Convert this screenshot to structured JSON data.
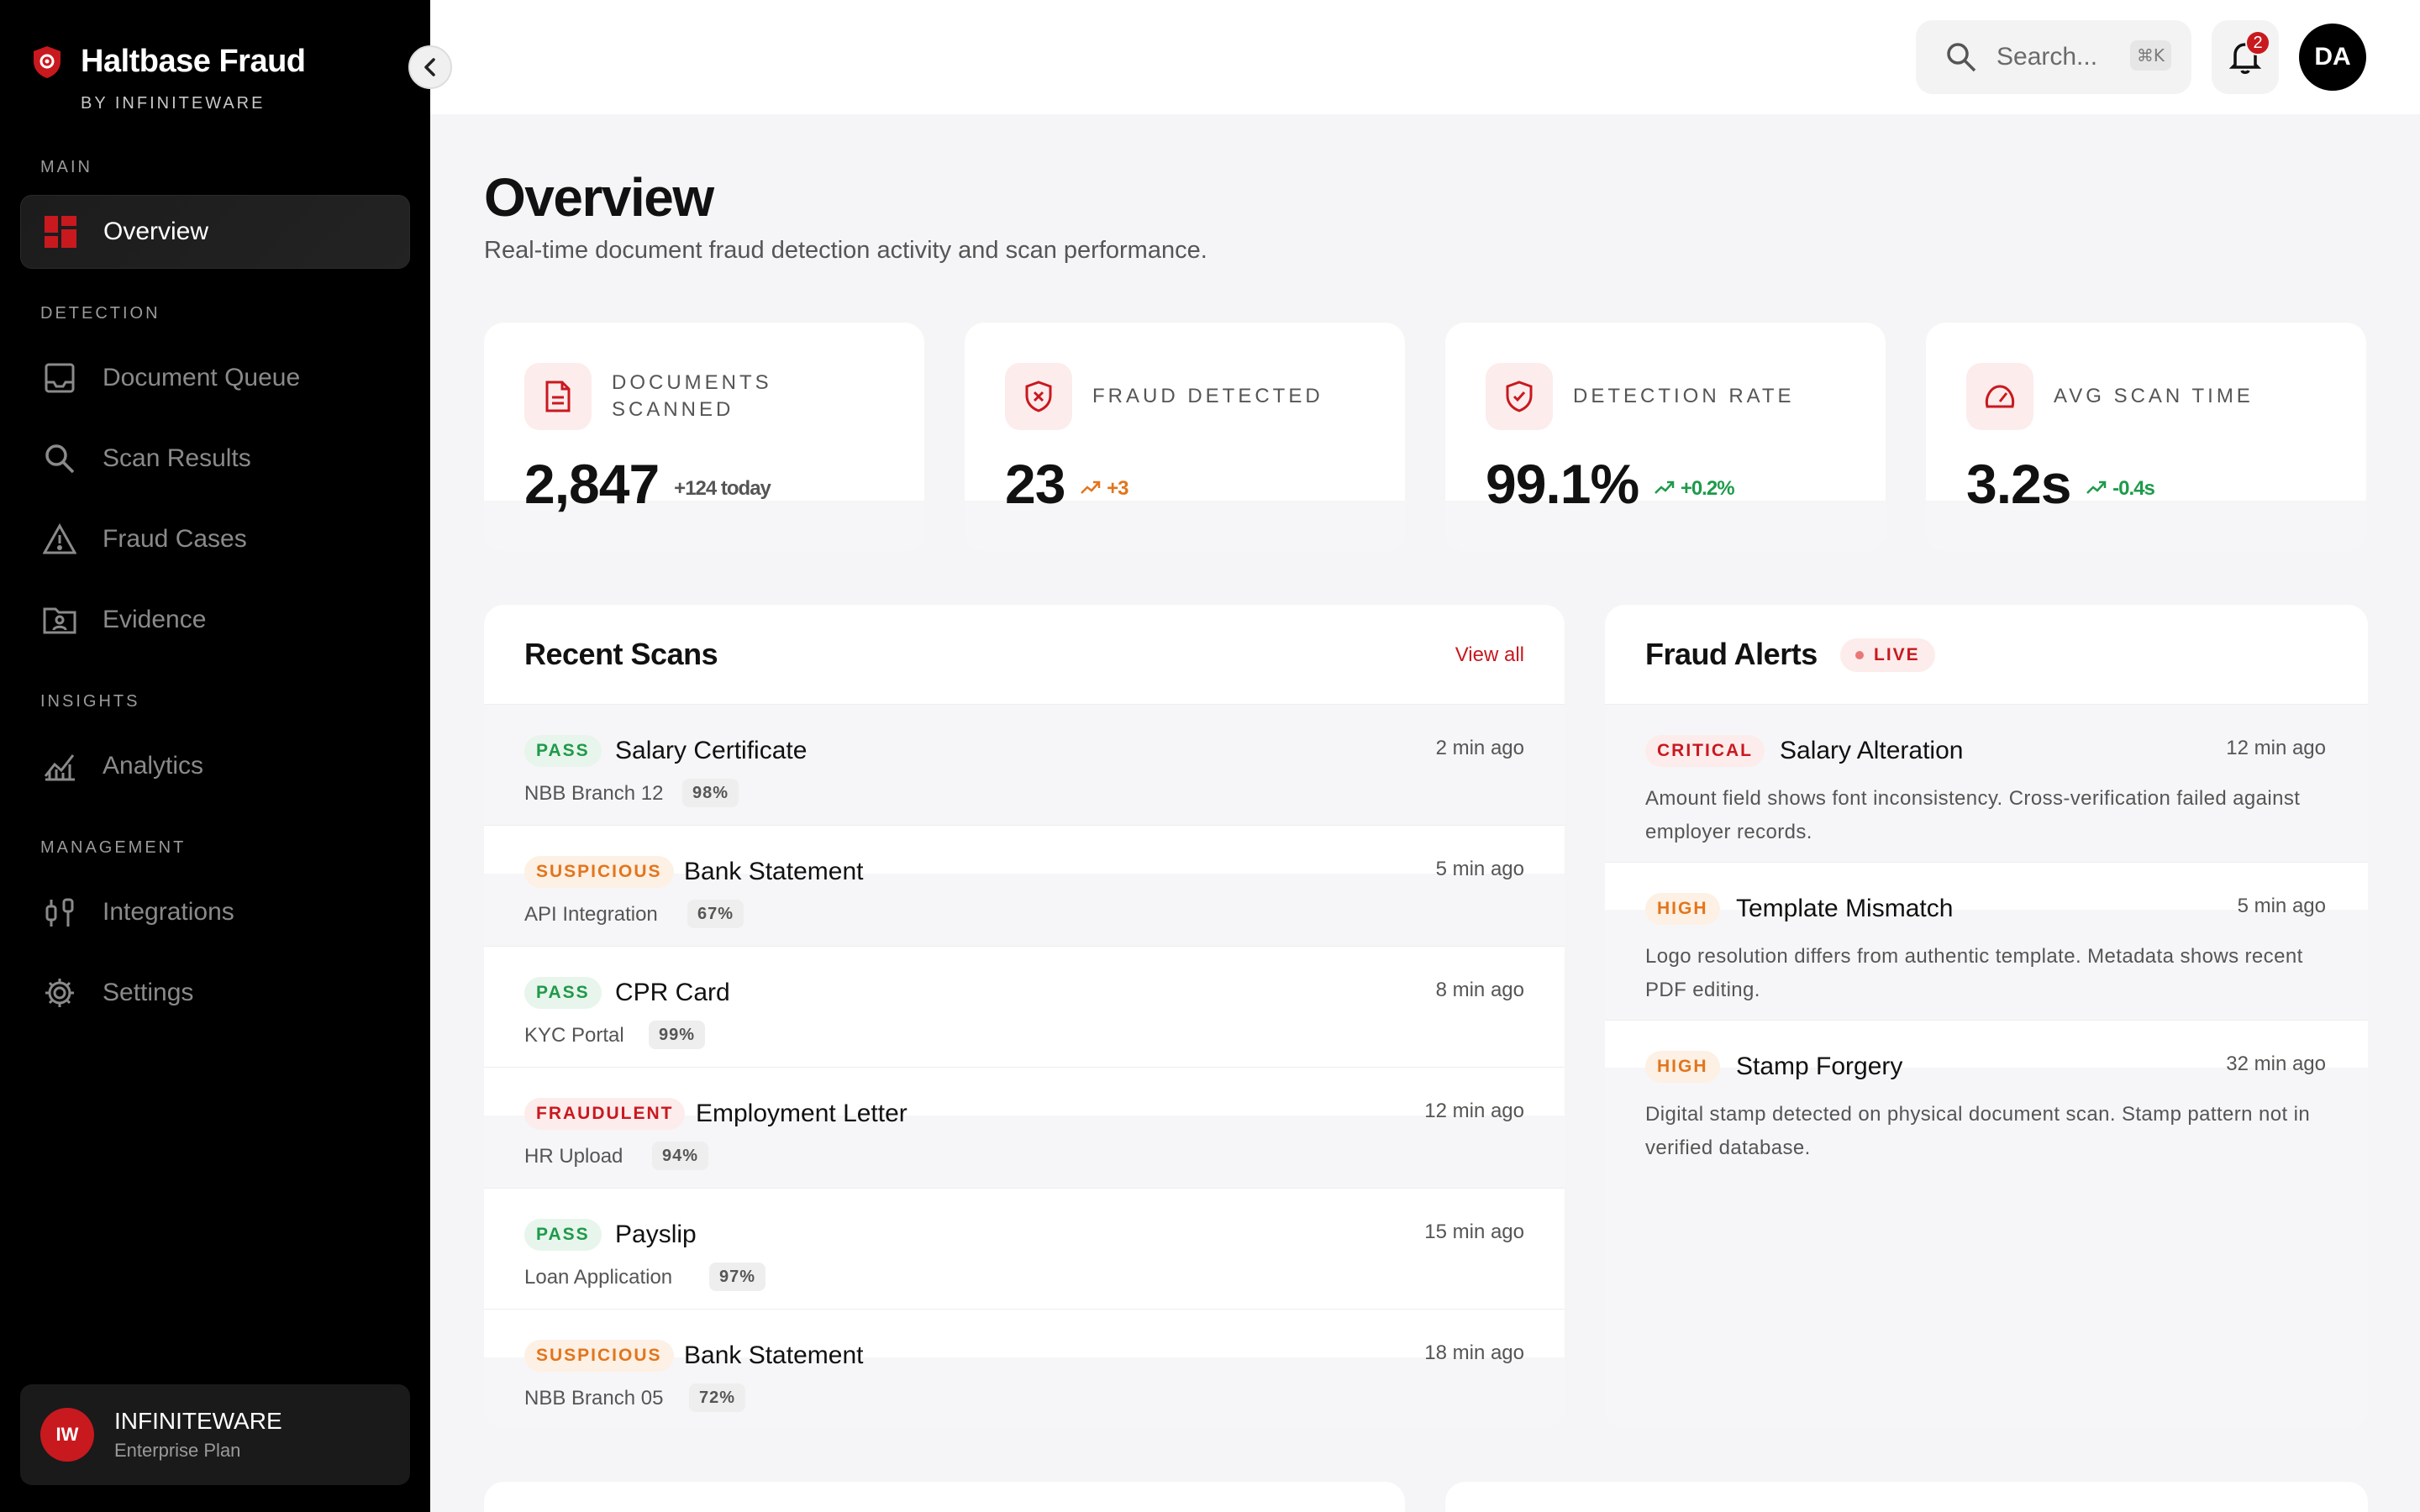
{
  "brand": {
    "name": "Haltbase Fraud",
    "sub": "BY INFINITEWARE",
    "accent": "#c8191f"
  },
  "sidebar": {
    "sections": [
      {
        "label": "MAIN",
        "items": [
          {
            "label": "Overview",
            "icon": "grid-icon",
            "active": true
          }
        ]
      },
      {
        "label": "DETECTION",
        "items": [
          {
            "label": "Document Queue",
            "icon": "inbox-icon"
          },
          {
            "label": "Scan Results",
            "icon": "search-icon"
          },
          {
            "label": "Fraud Cases",
            "icon": "warning-icon"
          },
          {
            "label": "Evidence",
            "icon": "folder-user-icon"
          }
        ]
      },
      {
        "label": "INSIGHTS",
        "items": [
          {
            "label": "Analytics",
            "icon": "analytics-icon"
          }
        ]
      },
      {
        "label": "MANAGEMENT",
        "items": [
          {
            "label": "Integrations",
            "icon": "plug-icon"
          },
          {
            "label": "Settings",
            "icon": "gear-icon"
          }
        ]
      }
    ],
    "org": {
      "initials": "IW",
      "name": "INFINITEWARE",
      "plan": "Enterprise Plan"
    }
  },
  "topbar": {
    "search_placeholder": "Search...",
    "shortcut": "⌘K",
    "notifications": "2",
    "user_initials": "DA"
  },
  "page": {
    "title": "Overview",
    "subtitle": "Real-time document fraud detection activity and scan performance."
  },
  "stats": [
    {
      "label": "DOCUMENTS SCANNED",
      "value": "2,847",
      "delta": "+124 today",
      "delta_color": "#555555",
      "icon": "document-icon"
    },
    {
      "label": "FRAUD DETECTED",
      "value": "23",
      "delta": "+3",
      "delta_color": "#e2751c",
      "icon": "shield-x-icon"
    },
    {
      "label": "DETECTION RATE",
      "value": "99.1%",
      "delta": "+0.2%",
      "delta_color": "#1e9a4a",
      "icon": "shield-check-icon"
    },
    {
      "label": "AVG SCAN TIME",
      "value": "3.2s",
      "delta": "-0.4s",
      "delta_color": "#1e9a4a",
      "icon": "speedometer-icon"
    }
  ],
  "recent_scans": {
    "title": "Recent Scans",
    "view_all": "View all",
    "rows": [
      {
        "status": "PASS",
        "kind": "pass",
        "name": "Salary Certificate",
        "source": "NBB Branch 12",
        "score": "98%",
        "time": "2 min ago"
      },
      {
        "status": "SUSPICIOUS",
        "kind": "suspicious",
        "name": "Bank Statement",
        "source": "API Integration",
        "score": "67%",
        "time": "5 min ago"
      },
      {
        "status": "PASS",
        "kind": "pass",
        "name": "CPR Card",
        "source": "KYC Portal",
        "score": "99%",
        "time": "8 min ago"
      },
      {
        "status": "FRAUDULENT",
        "kind": "fraudulent",
        "name": "Employment Letter",
        "source": "HR Upload",
        "score": "94%",
        "time": "12 min ago"
      },
      {
        "status": "PASS",
        "kind": "pass",
        "name": "Payslip",
        "source": "Loan Application",
        "score": "97%",
        "time": "15 min ago"
      },
      {
        "status": "SUSPICIOUS",
        "kind": "suspicious",
        "name": "Bank Statement",
        "source": "NBB Branch 05",
        "score": "72%",
        "time": "18 min ago"
      }
    ]
  },
  "fraud_alerts": {
    "title": "Fraud Alerts",
    "live": "LIVE",
    "rows": [
      {
        "severity": "CRITICAL",
        "kind": "critical",
        "title": "Salary Alteration",
        "time": "12 min ago",
        "desc": "Amount field shows font inconsistency. Cross-verification failed against employer records."
      },
      {
        "severity": "HIGH",
        "kind": "high",
        "title": "Template Mismatch",
        "time": "5 min ago",
        "desc": "Logo resolution differs from authentic template. Metadata shows recent PDF editing."
      },
      {
        "severity": "HIGH",
        "kind": "high",
        "title": "Stamp Forgery",
        "time": "32 min ago",
        "desc": "Digital stamp detected on physical document scan. Stamp pattern not in verified database."
      }
    ]
  }
}
